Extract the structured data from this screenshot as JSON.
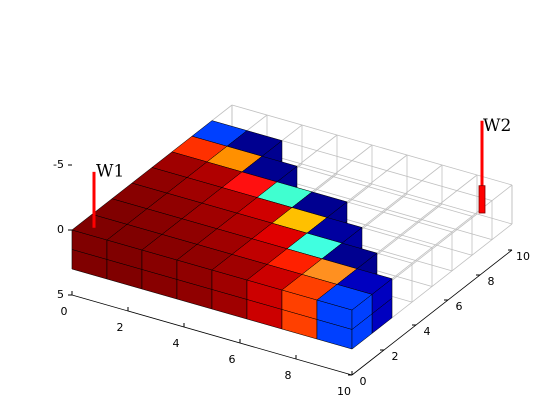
{
  "chart_data": {
    "type": "cells3d",
    "xlim": [
      0,
      10
    ],
    "ylim": [
      0,
      10
    ],
    "zlim": [
      -5,
      5
    ],
    "xticks": [
      0,
      2,
      4,
      6,
      8,
      10
    ],
    "yticks": [
      0,
      2,
      4,
      6,
      8,
      10
    ],
    "zticks": [
      -5,
      0,
      5
    ],
    "grid_color": "#c0c0c0",
    "cell_colors": [
      [
        "#800000",
        "#800000",
        "#880000",
        "#900000",
        "#a00000",
        "#cc0000",
        "#ff4000",
        "#0040ff"
      ],
      [
        "#800000",
        "#880000",
        "#900000",
        "#a00000",
        "#c00000",
        "#ff2000",
        "#ff9020",
        "#0000c0"
      ],
      [
        "#880000",
        "#900000",
        "#a00000",
        "#b00000",
        "#e00000",
        "#40ffe0",
        "#000090"
      ],
      [
        "#900000",
        "#a00000",
        "#b00000",
        "#d00000",
        "#ffc000",
        "#0000a0"
      ],
      [
        "#a00000",
        "#b00000",
        "#ff1010",
        "#40ffd0",
        "#000090"
      ],
      [
        "#ff3000",
        "#ff9000",
        "#000090"
      ],
      [
        "#0040ff",
        "#000090"
      ]
    ],
    "wells": [
      {
        "name": "W1",
        "color": "#ff0000"
      },
      {
        "name": "W2",
        "color": "#ff0000"
      }
    ]
  }
}
